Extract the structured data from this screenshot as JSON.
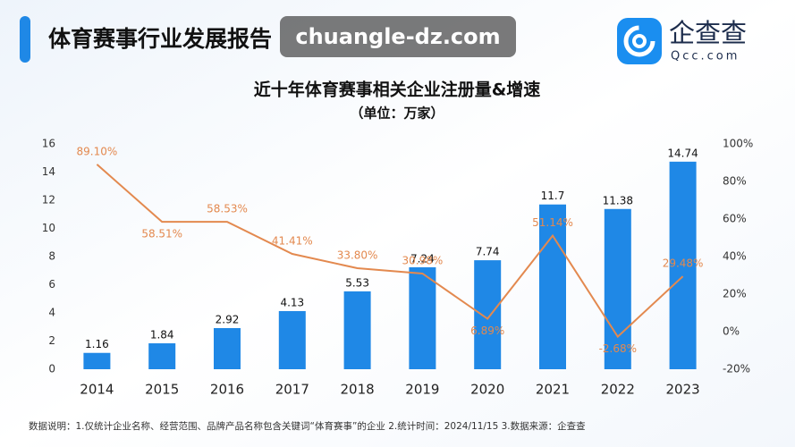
{
  "header": {
    "title": "体育赛事行业发展报告",
    "watermark": "chuangle-dz.com",
    "logo_name": "企查查",
    "logo_site": "Qcc.com"
  },
  "chart_data": {
    "type": "bar",
    "title": "近十年体育赛事相关企业注册量&增速",
    "subtitle": "（单位：万家）",
    "categories": [
      "2014",
      "2015",
      "2016",
      "2017",
      "2018",
      "2019",
      "2020",
      "2021",
      "2022",
      "2023"
    ],
    "series": [
      {
        "type": "bar",
        "color": "#1f88e6",
        "values": [
          1.16,
          1.84,
          2.92,
          4.13,
          5.53,
          7.24,
          7.74,
          11.7,
          11.38,
          14.74
        ]
      },
      {
        "type": "line",
        "axis": "y2",
        "color": "#e3894f",
        "values": [
          89.1,
          58.51,
          58.53,
          41.41,
          33.8,
          30.98,
          6.89,
          51.14,
          -2.68,
          29.48
        ],
        "value_labels": [
          "89.10%",
          "58.51%",
          "58.53%",
          "41.41%",
          "33.80%",
          "30.98%",
          "6.89%",
          "51.14%",
          "-2.68%",
          "29.48%"
        ]
      }
    ],
    "ylim": [
      0,
      16
    ],
    "yticks": [
      0,
      2,
      4,
      6,
      8,
      10,
      12,
      14,
      16
    ],
    "y2lim": [
      -20,
      100
    ],
    "y2ticks": [
      {
        "value": -20,
        "label": "-20%"
      },
      {
        "value": 0,
        "label": "0%"
      },
      {
        "value": 20,
        "label": "20%"
      },
      {
        "value": 40,
        "label": "40%"
      },
      {
        "value": 60,
        "label": "60%"
      },
      {
        "value": 80,
        "label": "80%"
      },
      {
        "value": 100,
        "label": "100%"
      }
    ]
  },
  "footnote": "数据说明：1.仅统计企业名称、经营范围、品牌产品名称包含关键词“体育赛事”的企业  2.统计时间：2024/11/15  3.数据来源：企查查"
}
